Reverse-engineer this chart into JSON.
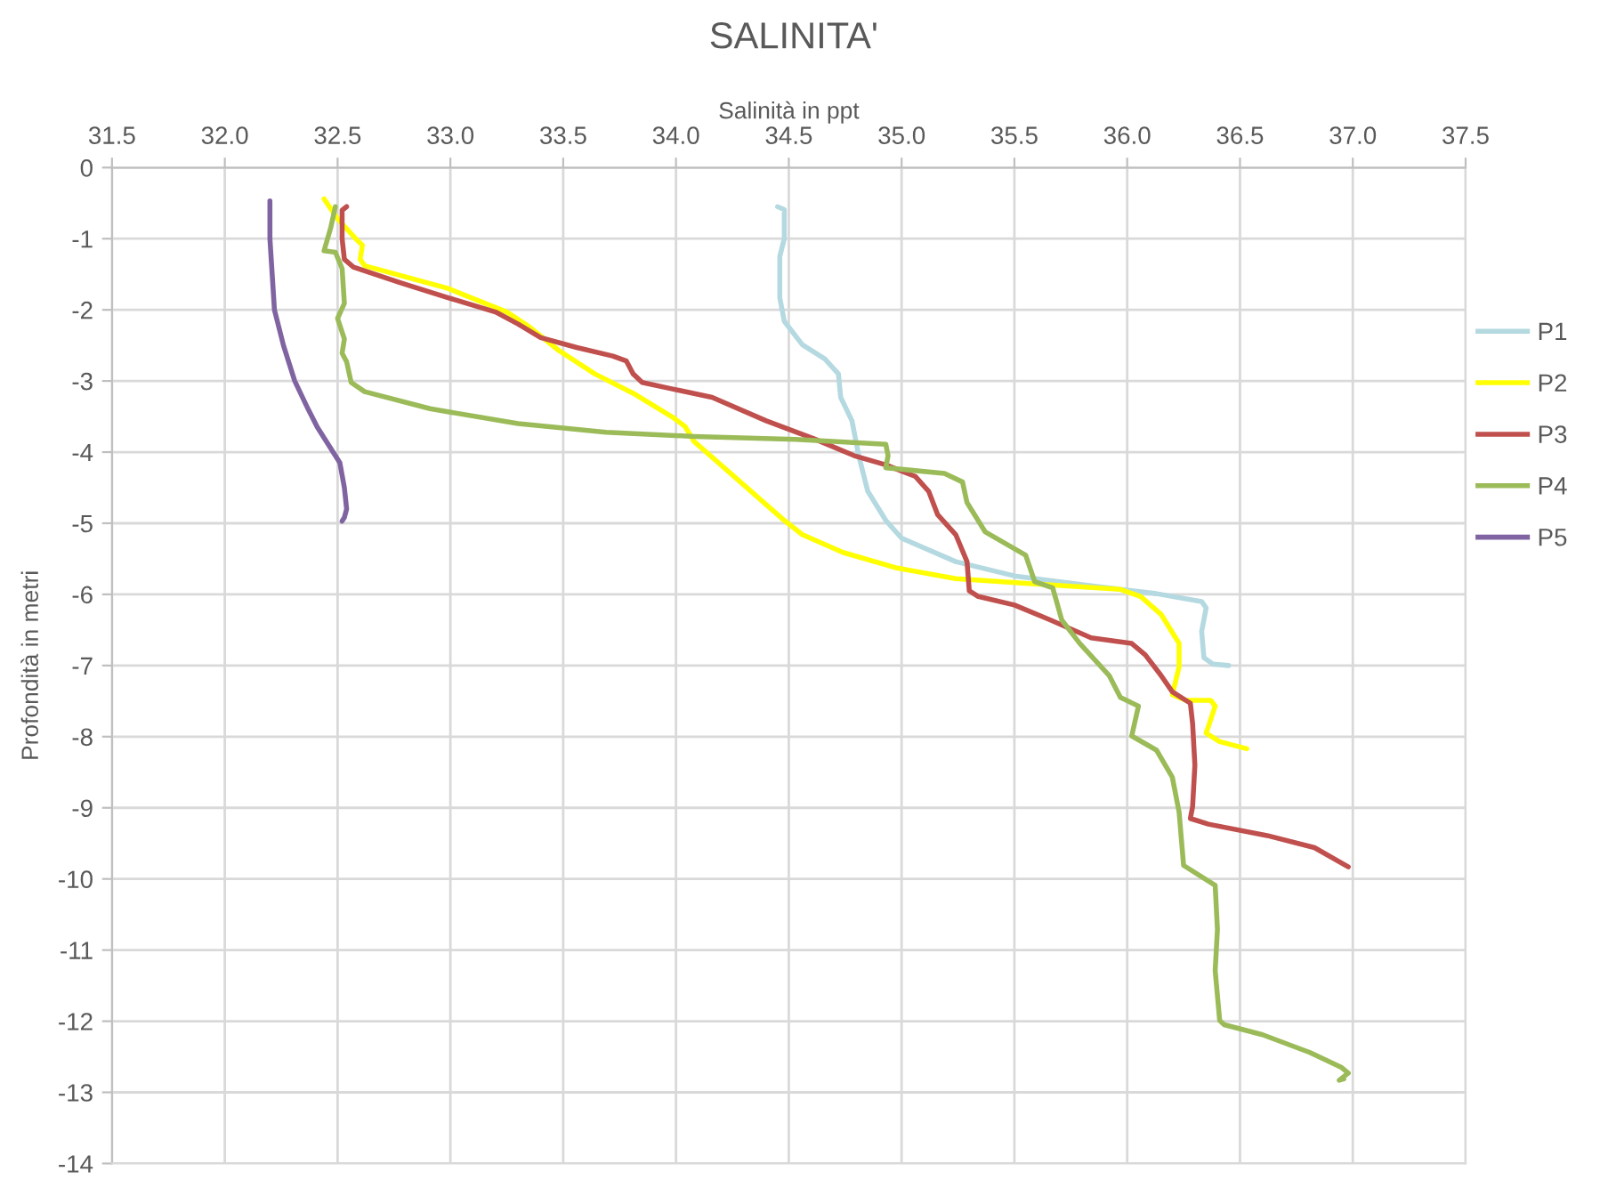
{
  "chart_data": {
    "type": "line",
    "title": "SALINITA'",
    "xlabel": "Salinità in ppt",
    "ylabel": "Profondità in metri",
    "xlim": [
      31.5,
      37.5
    ],
    "xticks": [
      31.5,
      {
        "value": 32,
        "label": "32.0"
      },
      32.5,
      {
        "value": 33,
        "label": "33.0"
      },
      33.5,
      {
        "value": 34,
        "label": "34.0"
      },
      34.5,
      {
        "value": 35,
        "label": "35.0"
      },
      35.5,
      {
        "value": 36,
        "label": "36.0"
      },
      36.5,
      {
        "value": 37,
        "label": "37.0"
      },
      37.5
    ],
    "ylim": [
      -14,
      0
    ],
    "yticks": [
      0,
      -1,
      -2,
      -3,
      -4,
      -5,
      -6,
      -7,
      -8,
      -9,
      -10,
      -11,
      -12,
      -13,
      -14
    ],
    "grid": true,
    "legend": "right",
    "series": [
      {
        "name": "P1",
        "color": "#b4d9e0",
        "x": [
          34.45,
          34.48,
          34.48,
          34.46,
          34.46,
          34.48,
          34.56,
          34.66,
          34.72,
          34.73,
          34.78,
          34.81,
          34.85,
          34.93,
          35.0,
          35.24,
          35.5,
          35.84,
          36.13,
          36.33,
          36.35,
          36.33,
          36.34,
          36.38,
          36.45
        ],
        "values": [
          -0.55,
          -0.59,
          -1.0,
          -1.25,
          -1.83,
          -2.16,
          -2.49,
          -2.69,
          -2.9,
          -3.23,
          -3.56,
          -4.05,
          -4.55,
          -4.96,
          -5.21,
          -5.54,
          -5.74,
          -5.88,
          -5.99,
          -6.1,
          -6.19,
          -6.52,
          -6.89,
          -6.98,
          -7.0
        ]
      },
      {
        "name": "P2",
        "color": "#ffff00",
        "x": [
          32.44,
          32.5,
          32.58,
          32.61,
          32.6,
          32.62,
          32.99,
          33.25,
          33.35,
          33.48,
          33.64,
          33.82,
          33.99,
          34.04,
          34.08,
          34.3,
          34.48,
          34.56,
          34.74,
          34.98,
          35.24,
          35.58,
          35.97,
          36.06,
          36.15,
          36.23,
          36.23,
          36.2,
          36.26,
          36.37,
          36.39,
          36.35,
          36.41,
          36.53
        ],
        "values": [
          -0.44,
          -0.72,
          -1.0,
          -1.09,
          -1.29,
          -1.38,
          -1.7,
          -2.03,
          -2.24,
          -2.57,
          -2.9,
          -3.19,
          -3.52,
          -3.64,
          -3.85,
          -4.46,
          -4.96,
          -5.16,
          -5.41,
          -5.63,
          -5.78,
          -5.85,
          -5.93,
          -6.03,
          -6.28,
          -6.69,
          -7.02,
          -7.41,
          -7.49,
          -7.49,
          -7.57,
          -7.95,
          -8.07,
          -8.17
        ]
      },
      {
        "name": "P3",
        "color": "#c0504d",
        "x": [
          32.54,
          32.52,
          32.52,
          32.53,
          32.57,
          32.78,
          32.99,
          33.2,
          33.3,
          33.4,
          33.56,
          33.72,
          33.78,
          33.81,
          33.85,
          33.98,
          34.16,
          34.4,
          34.61,
          34.79,
          34.93,
          35.06,
          35.12,
          35.16,
          35.24,
          35.29,
          35.3,
          35.34,
          35.5,
          35.66,
          35.84,
          36.02,
          36.08,
          36.15,
          36.2,
          36.28,
          36.29,
          36.3,
          36.29,
          36.28,
          36.36,
          36.62,
          36.83,
          36.98
        ],
        "values": [
          -0.55,
          -0.6,
          -1.0,
          -1.29,
          -1.4,
          -1.62,
          -1.83,
          -2.03,
          -2.2,
          -2.39,
          -2.53,
          -2.65,
          -2.72,
          -2.9,
          -3.02,
          -3.11,
          -3.23,
          -3.56,
          -3.81,
          -4.05,
          -4.18,
          -4.34,
          -4.55,
          -4.88,
          -5.16,
          -5.54,
          -5.95,
          -6.03,
          -6.15,
          -6.36,
          -6.61,
          -6.69,
          -6.85,
          -7.14,
          -7.37,
          -7.53,
          -7.82,
          -8.4,
          -8.98,
          -9.15,
          -9.23,
          -9.39,
          -9.56,
          -9.83
        ]
      },
      {
        "name": "P4",
        "color": "#9bbb59",
        "x": [
          32.49,
          32.47,
          32.44,
          32.49,
          32.52,
          32.53,
          32.5,
          32.53,
          32.52,
          32.54,
          32.56,
          32.62,
          32.91,
          33.3,
          33.69,
          34.08,
          34.53,
          34.93,
          34.94,
          34.93,
          35.19,
          35.27,
          35.29,
          35.37,
          35.55,
          35.59,
          35.67,
          35.71,
          35.79,
          35.92,
          35.97,
          36.05,
          36.02,
          36.13,
          36.2,
          36.23,
          36.25,
          36.39,
          36.4,
          36.39,
          36.41,
          36.43,
          36.6,
          36.81,
          36.95,
          36.98,
          36.94,
          36.96
        ],
        "values": [
          -0.55,
          -0.84,
          -1.17,
          -1.19,
          -1.42,
          -1.91,
          -2.12,
          -2.41,
          -2.61,
          -2.73,
          -3.02,
          -3.15,
          -3.39,
          -3.6,
          -3.72,
          -3.78,
          -3.82,
          -3.89,
          -4.05,
          -4.22,
          -4.3,
          -4.42,
          -4.71,
          -5.12,
          -5.45,
          -5.82,
          -5.91,
          -6.36,
          -6.69,
          -7.14,
          -7.45,
          -7.57,
          -7.99,
          -8.19,
          -8.57,
          -9.06,
          -9.81,
          -10.09,
          -10.71,
          -11.29,
          -11.99,
          -12.05,
          -12.19,
          -12.44,
          -12.65,
          -12.73,
          -12.83,
          -12.81
        ]
      },
      {
        "name": "P5",
        "color": "#8064a2",
        "x": [
          32.2,
          32.2,
          32.21,
          32.22,
          32.26,
          32.31,
          32.37,
          32.41,
          32.47,
          32.51,
          32.53,
          32.54,
          32.53,
          32.52
        ],
        "values": [
          -0.47,
          -1.0,
          -1.5,
          -2.0,
          -2.5,
          -3.0,
          -3.4,
          -3.65,
          -3.95,
          -4.15,
          -4.5,
          -4.8,
          -4.92,
          -4.97
        ]
      }
    ]
  }
}
